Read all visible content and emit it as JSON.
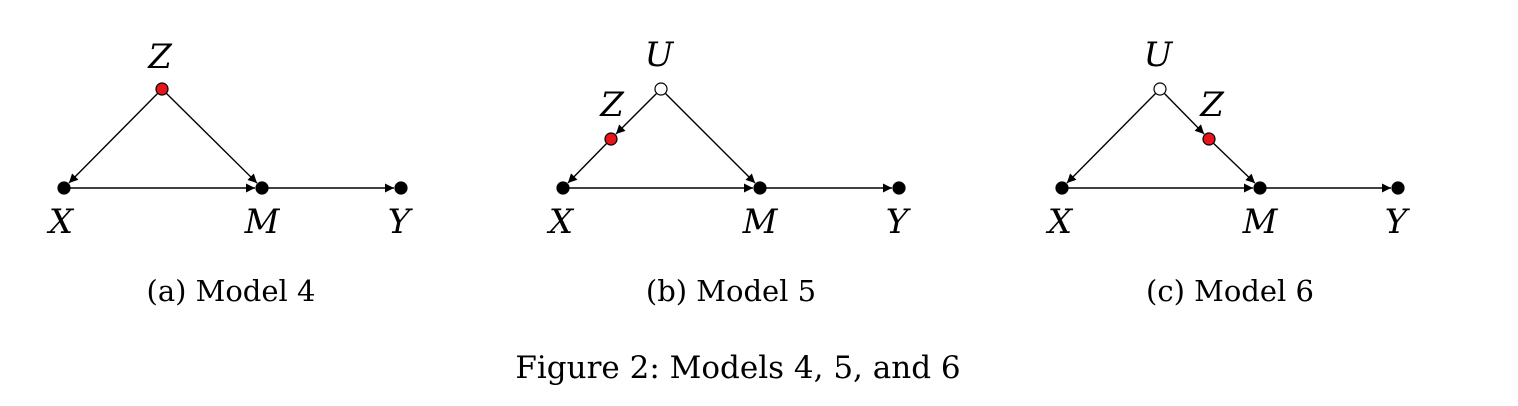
{
  "figure_caption": "Figure 2: Models 4, 5, and 6",
  "colors": {
    "observed": "#000000",
    "instrument": "#e8141b",
    "latent_fill": "#ffffff"
  },
  "panels": [
    {
      "caption": "(a) Model 4",
      "nodes": [
        {
          "id": "Z",
          "label": "Z",
          "kind": "instrument"
        },
        {
          "id": "X",
          "label": "X",
          "kind": "observed"
        },
        {
          "id": "M",
          "label": "M",
          "kind": "observed"
        },
        {
          "id": "Y",
          "label": "Y",
          "kind": "observed"
        }
      ],
      "edges": [
        [
          "Z",
          "X"
        ],
        [
          "Z",
          "M"
        ],
        [
          "X",
          "M"
        ],
        [
          "M",
          "Y"
        ]
      ]
    },
    {
      "caption": "(b) Model 5",
      "nodes": [
        {
          "id": "U",
          "label": "U",
          "kind": "latent"
        },
        {
          "id": "Z",
          "label": "Z",
          "kind": "instrument"
        },
        {
          "id": "X",
          "label": "X",
          "kind": "observed"
        },
        {
          "id": "M",
          "label": "M",
          "kind": "observed"
        },
        {
          "id": "Y",
          "label": "Y",
          "kind": "observed"
        }
      ],
      "edges": [
        [
          "U",
          "Z"
        ],
        [
          "Z",
          "X"
        ],
        [
          "U",
          "M"
        ],
        [
          "X",
          "M"
        ],
        [
          "M",
          "Y"
        ]
      ]
    },
    {
      "caption": "(c) Model 6",
      "nodes": [
        {
          "id": "U",
          "label": "U",
          "kind": "latent"
        },
        {
          "id": "Z",
          "label": "Z",
          "kind": "instrument"
        },
        {
          "id": "X",
          "label": "X",
          "kind": "observed"
        },
        {
          "id": "M",
          "label": "M",
          "kind": "observed"
        },
        {
          "id": "Y",
          "label": "Y",
          "kind": "observed"
        }
      ],
      "edges": [
        [
          "U",
          "X"
        ],
        [
          "U",
          "Z"
        ],
        [
          "Z",
          "M"
        ],
        [
          "X",
          "M"
        ],
        [
          "M",
          "Y"
        ]
      ]
    }
  ]
}
